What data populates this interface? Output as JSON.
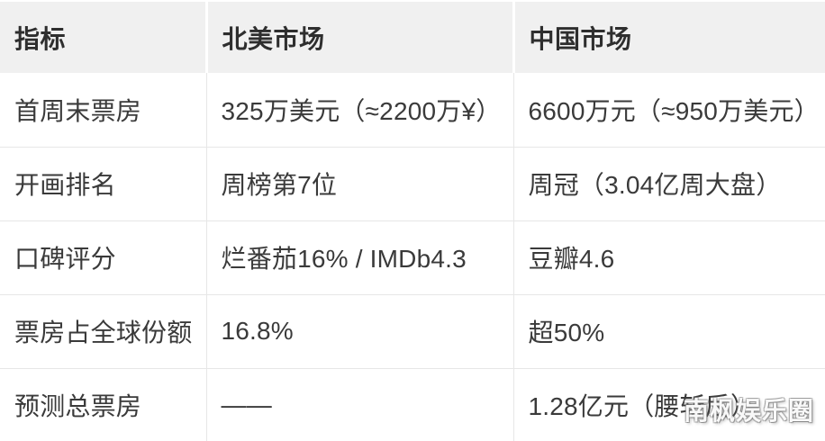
{
  "chart_data": {
    "type": "table",
    "title": "",
    "columns": [
      "指标",
      "北美市场",
      "中国市场"
    ],
    "rows": [
      [
        "首周末票房",
        "325万美元（≈2200万¥）",
        "6600万元（≈950万美元）"
      ],
      [
        "开画排名",
        "周榜第7位",
        "周冠（3.04亿周大盘）"
      ],
      [
        "口碑评分",
        "烂番茄16% / IMDb4.3",
        "豆瓣4.6"
      ],
      [
        "票房占全球份额",
        "16.8%",
        "超50%"
      ],
      [
        "预测总票房",
        "——",
        "1.28亿元（腰斩后）"
      ]
    ],
    "layout": {
      "header_background": "#f0f0f0",
      "grid_line_color": "#e7e7e7",
      "header_text_color": "#2e2e2e",
      "body_text_color": "#3a3a3a",
      "grid": "on"
    }
  },
  "watermark": {
    "text": "南枫娱乐圈"
  }
}
